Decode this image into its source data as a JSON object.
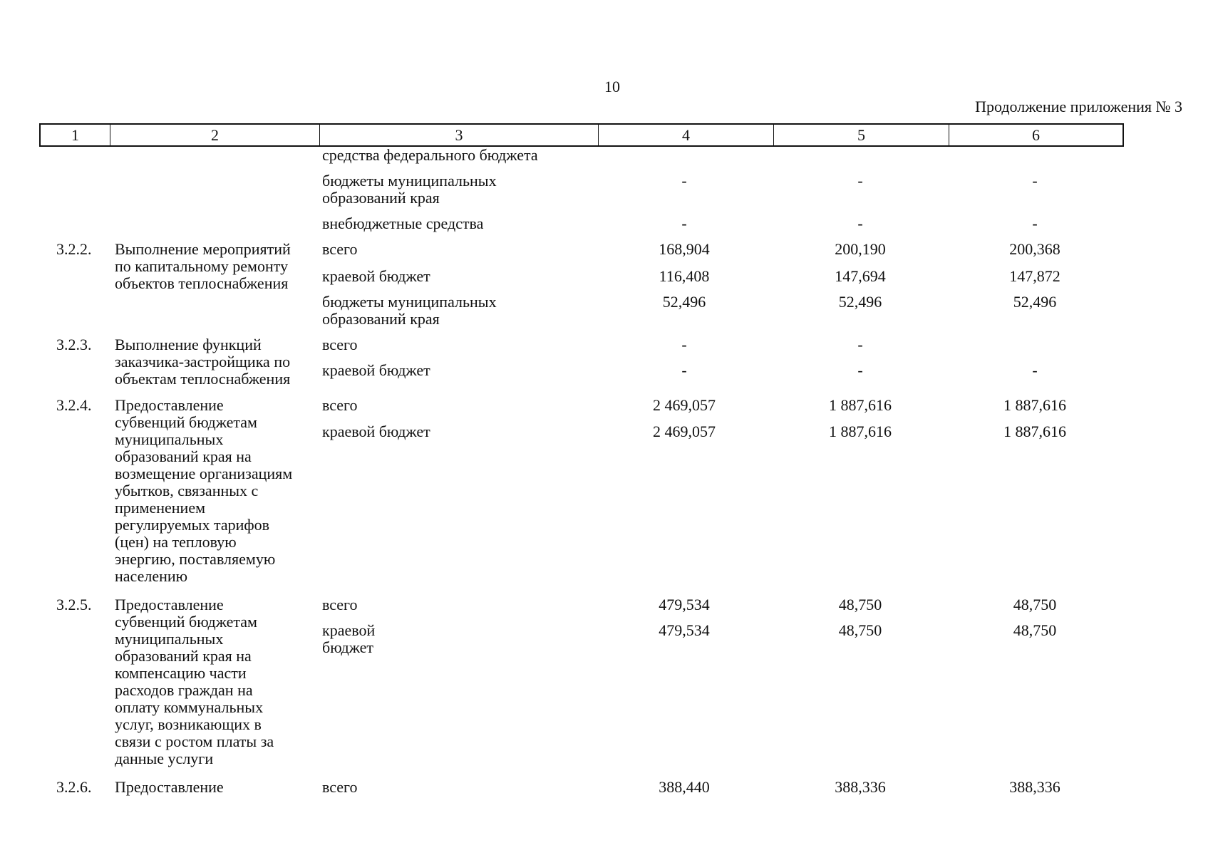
{
  "page_number": "10",
  "continuation_label": "Продолжение приложения № 3",
  "header": [
    "1",
    "2",
    "3",
    "4",
    "5",
    "6"
  ],
  "top_rows": [
    {
      "source": "средства федерального бюджета",
      "v4": "",
      "v5": "",
      "v6": ""
    },
    {
      "source": "бюджеты муниципальных\nобразований края",
      "v4": "-",
      "v5": "-",
      "v6": "-"
    },
    {
      "source": "внебюджетные средства",
      "v4": "-",
      "v5": "-",
      "v6": "-"
    }
  ],
  "items": [
    {
      "code": "3.2.2.",
      "name": "Выполнение мероприятий\nпо капитальному ремонту\nобъектов теплоснабжения",
      "rows": [
        {
          "source": "всего",
          "v4": "168,904",
          "v5": "200,190",
          "v6": "200,368"
        },
        {
          "source": "краевой бюджет",
          "v4": "116,408",
          "v5": "147,694",
          "v6": "147,872"
        },
        {
          "source": "бюджеты муниципальных\nобразований края",
          "v4": "52,496",
          "v5": "52,496",
          "v6": "52,496"
        }
      ]
    },
    {
      "code": "3.2.3.",
      "name": "Выполнение функций\nзаказчика-застройщика по\nобъектам теплоснабжения",
      "rows": [
        {
          "source": "всего",
          "v4": "-",
          "v5": "-",
          "v6": ""
        },
        {
          "source": "краевой бюджет",
          "v4": "-",
          "v5": "-",
          "v6": "-"
        }
      ]
    },
    {
      "code": "3.2.4.",
      "name": "Предоставление\nсубвенций бюджетам\nмуниципальных\nобразований края на\nвозмещение организациям\nубытков, связанных с\nприменением\nрегулируемых тарифов\n(цен) на тепловую\nэнергию, поставляемую\nнаселению",
      "rows": [
        {
          "source": "всего",
          "v4": "2 469,057",
          "v5": "1 887,616",
          "v6": "1 887,616"
        },
        {
          "source": "краевой бюджет",
          "v4": "2 469,057",
          "v5": "1 887,616",
          "v6": "1 887,616"
        }
      ]
    },
    {
      "code": "3.2.5.",
      "name": "Предоставление\nсубвенций бюджетам\nмуниципальных\nобразований края на\nкомпенсацию части\nрасходов граждан на\nоплату коммунальных\nуслуг, возникающих в\nсвязи с ростом платы за\nданные услуги",
      "rows": [
        {
          "source": "всего",
          "v4": "479,534",
          "v5": "48,750",
          "v6": "48,750"
        },
        {
          "source": "краевой\nбюджет",
          "v4": "479,534",
          "v5": "48,750",
          "v6": "48,750"
        }
      ]
    },
    {
      "code": "3.2.6.",
      "name": "Предоставление",
      "rows": [
        {
          "source": "всего",
          "v4": "388,440",
          "v5": "388,336",
          "v6": "388,336"
        }
      ]
    }
  ]
}
